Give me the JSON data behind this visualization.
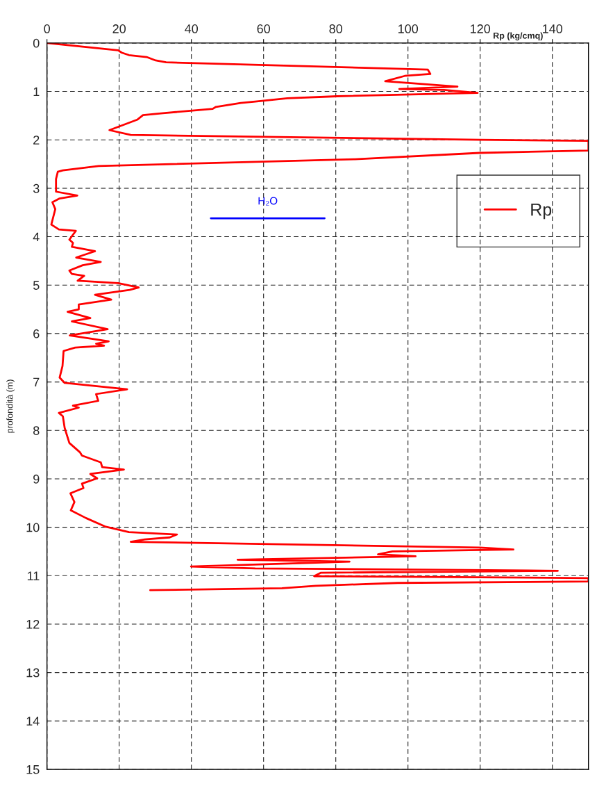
{
  "chart_data": {
    "type": "line",
    "xlabel": "Rp (kg/cmq)",
    "ylabel": "profondità (m)",
    "xlim": [
      0,
      150
    ],
    "xticks": [
      0,
      20,
      40,
      60,
      80,
      100,
      120,
      140
    ],
    "ylim": [
      15,
      0
    ],
    "yticks": [
      0,
      1,
      2,
      3,
      4,
      5,
      6,
      7,
      8,
      9,
      10,
      11,
      12,
      13,
      14,
      15
    ],
    "grid": true,
    "legend": "top right",
    "series": [
      {
        "name": "Rp",
        "color": "#ff0000",
        "x": [
          0,
          19.7,
          20.7,
          22.7,
          27.6,
          30.1,
          33.0,
          105.5,
          106.2,
          99.1,
          93.7,
          113.7,
          97.6,
          110.0,
          119.3,
          80.4,
          66.6,
          57.7,
          53.7,
          46.8,
          45.9,
          32.1,
          26.6,
          25.1,
          17.3,
          23.2,
          119.8,
          150,
          150,
          119.8,
          85.3,
          14.3,
          4.4,
          3.0,
          2.5,
          2.5,
          8.4,
          3.5,
          1.5,
          2.3,
          1.2,
          3.3,
          8.0,
          6.2,
          7.2,
          6.9,
          13.3,
          8.1,
          14.9,
          9.9,
          6.2,
          6.9,
          10.3,
          8.5,
          19.7,
          25.4,
          22.9,
          13.3,
          17.8,
          8.8,
          8.8,
          5.7,
          12.0,
          6.9,
          16.8,
          6.3,
          17.1,
          13.6,
          15.8,
          7.8,
          4.6,
          4.3,
          3.5,
          4.9,
          22.2,
          13.6,
          14.2,
          7.2,
          8.8,
          3.3,
          4.4,
          4.9,
          6.2,
          9.1,
          9.7,
          14.9,
          15.3,
          21.3,
          12.0,
          13.9,
          9.7,
          10.1,
          6.5,
          7.6,
          6.6,
          10.8,
          16.3,
          22.7,
          36.0,
          34.0,
          27.1,
          23.2,
          119.8,
          129.2,
          95.7,
          91.7,
          102.1,
          52.8,
          83.8,
          39.9,
          57.7,
          141.5,
          75.9,
          74.0,
          150,
          150,
          97.1,
          74.5,
          65.1,
          28.6
        ],
        "values": [
          0,
          0.15,
          0.2,
          0.25,
          0.29,
          0.36,
          0.4,
          0.55,
          0.64,
          0.68,
          0.79,
          0.9,
          0.95,
          0.97,
          1.03,
          1.1,
          1.14,
          1.21,
          1.24,
          1.32,
          1.36,
          1.45,
          1.49,
          1.58,
          1.8,
          1.9,
          2.0,
          2.02,
          2.22,
          2.27,
          2.4,
          2.54,
          2.63,
          2.66,
          2.81,
          3.07,
          3.15,
          3.21,
          3.29,
          3.43,
          3.75,
          3.85,
          3.88,
          4.06,
          4.13,
          4.21,
          4.3,
          4.43,
          4.52,
          4.59,
          4.7,
          4.77,
          4.81,
          4.91,
          4.96,
          5.05,
          5.1,
          5.2,
          5.3,
          5.4,
          5.5,
          5.55,
          5.68,
          5.75,
          5.91,
          6.04,
          6.16,
          6.21,
          6.25,
          6.29,
          6.36,
          6.67,
          6.91,
          7.02,
          7.15,
          7.25,
          7.39,
          7.49,
          7.53,
          7.64,
          7.71,
          7.95,
          8.26,
          8.45,
          8.52,
          8.66,
          8.76,
          8.81,
          8.9,
          8.99,
          9.1,
          9.19,
          9.3,
          9.48,
          9.65,
          9.81,
          9.99,
          10.1,
          10.15,
          10.21,
          10.25,
          10.3,
          10.42,
          10.46,
          10.5,
          10.56,
          10.6,
          10.67,
          10.71,
          10.81,
          10.85,
          10.9,
          10.94,
          11.01,
          11.05,
          11.12,
          11.15,
          11.21,
          11.26,
          11.3
        ]
      },
      {
        "name": "H₂O",
        "color": "#0000ff",
        "x": [
          45.4,
          76.9
        ],
        "values": [
          3.62,
          3.62
        ]
      }
    ]
  }
}
